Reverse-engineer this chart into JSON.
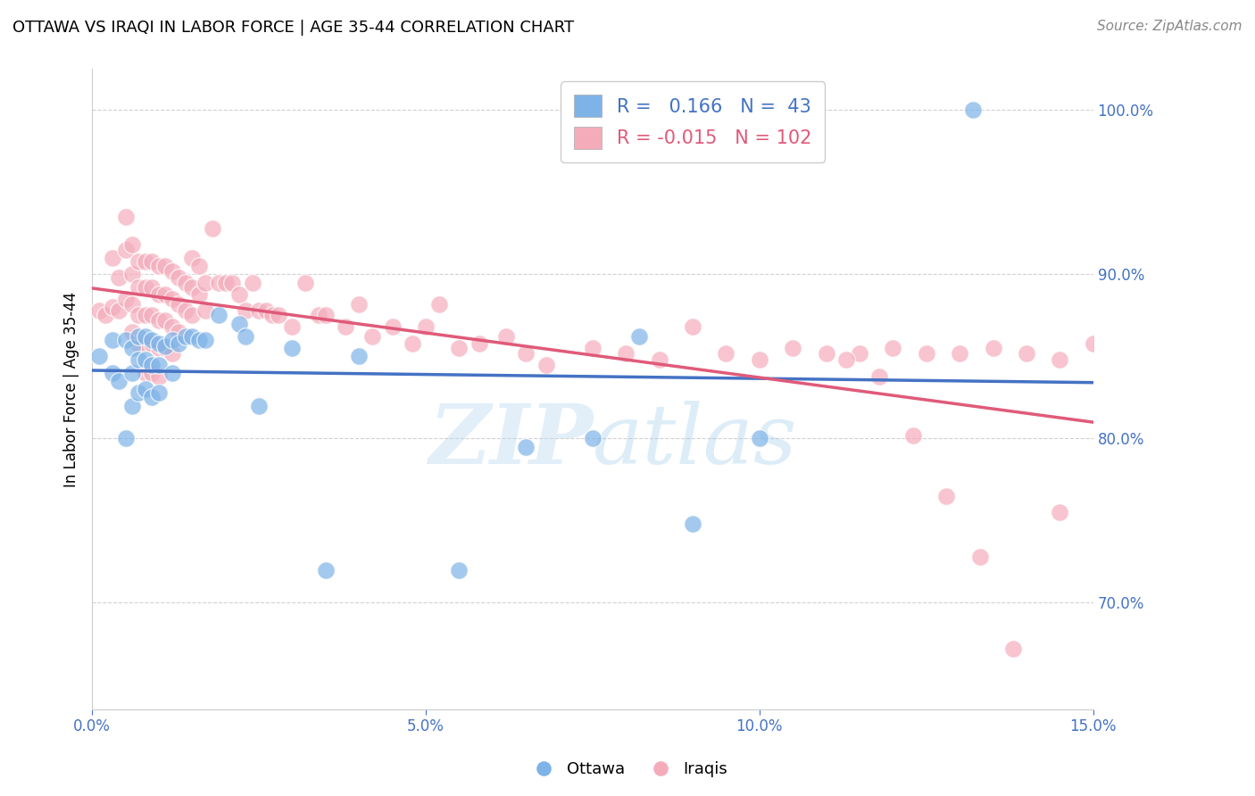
{
  "title": "OTTAWA VS IRAQI IN LABOR FORCE | AGE 35-44 CORRELATION CHART",
  "source": "Source: ZipAtlas.com",
  "ylabel": "In Labor Force | Age 35-44",
  "xlim": [
    0.0,
    0.15
  ],
  "ylim": [
    0.635,
    1.025
  ],
  "xtick_labels": [
    "0.0%",
    "5.0%",
    "10.0%",
    "15.0%"
  ],
  "xtick_vals": [
    0.0,
    0.05,
    0.1,
    0.15
  ],
  "ytick_labels": [
    "70.0%",
    "80.0%",
    "90.0%",
    "100.0%"
  ],
  "ytick_vals": [
    0.7,
    0.8,
    0.9,
    1.0
  ],
  "ottawa_color": "#7EB3E8",
  "iraqi_color": "#F4ACBB",
  "trend_ottawa_color": "#4472C4",
  "trend_iraqi_color": "#E05A7A",
  "R_ottawa": 0.166,
  "N_ottawa": 43,
  "R_iraqi": -0.015,
  "N_iraqi": 102,
  "background_color": "#FFFFFF",
  "grid_color": "#CCCCCC",
  "ottawa_points_x": [
    0.001,
    0.003,
    0.003,
    0.004,
    0.005,
    0.005,
    0.006,
    0.006,
    0.006,
    0.007,
    0.007,
    0.007,
    0.008,
    0.008,
    0.008,
    0.009,
    0.009,
    0.009,
    0.01,
    0.01,
    0.01,
    0.011,
    0.012,
    0.012,
    0.013,
    0.014,
    0.015,
    0.016,
    0.017,
    0.019,
    0.022,
    0.023,
    0.025,
    0.03,
    0.035,
    0.04,
    0.055,
    0.065,
    0.075,
    0.082,
    0.09,
    0.1,
    0.132
  ],
  "ottawa_points_y": [
    0.85,
    0.86,
    0.84,
    0.835,
    0.8,
    0.86,
    0.855,
    0.84,
    0.82,
    0.862,
    0.848,
    0.828,
    0.862,
    0.848,
    0.83,
    0.86,
    0.845,
    0.825,
    0.858,
    0.845,
    0.828,
    0.856,
    0.86,
    0.84,
    0.858,
    0.862,
    0.862,
    0.86,
    0.86,
    0.875,
    0.87,
    0.862,
    0.82,
    0.855,
    0.72,
    0.85,
    0.72,
    0.795,
    0.8,
    0.862,
    0.748,
    0.8,
    1.0
  ],
  "iraqi_points_x": [
    0.001,
    0.002,
    0.003,
    0.003,
    0.004,
    0.004,
    0.005,
    0.005,
    0.005,
    0.006,
    0.006,
    0.006,
    0.006,
    0.007,
    0.007,
    0.007,
    0.007,
    0.008,
    0.008,
    0.008,
    0.008,
    0.008,
    0.009,
    0.009,
    0.009,
    0.009,
    0.009,
    0.01,
    0.01,
    0.01,
    0.01,
    0.01,
    0.011,
    0.011,
    0.011,
    0.011,
    0.012,
    0.012,
    0.012,
    0.012,
    0.013,
    0.013,
    0.013,
    0.014,
    0.014,
    0.015,
    0.015,
    0.015,
    0.016,
    0.016,
    0.017,
    0.017,
    0.018,
    0.019,
    0.02,
    0.021,
    0.022,
    0.023,
    0.024,
    0.025,
    0.026,
    0.027,
    0.028,
    0.03,
    0.032,
    0.034,
    0.035,
    0.038,
    0.04,
    0.042,
    0.045,
    0.048,
    0.05,
    0.052,
    0.055,
    0.058,
    0.062,
    0.065,
    0.068,
    0.075,
    0.08,
    0.085,
    0.09,
    0.095,
    0.1,
    0.105,
    0.11,
    0.115,
    0.12,
    0.125,
    0.13,
    0.135,
    0.14,
    0.145,
    0.15,
    0.145,
    0.138,
    0.133,
    0.128,
    0.123,
    0.118,
    0.113
  ],
  "iraqi_points_y": [
    0.878,
    0.875,
    0.91,
    0.88,
    0.898,
    0.878,
    0.935,
    0.915,
    0.885,
    0.918,
    0.9,
    0.882,
    0.865,
    0.908,
    0.892,
    0.875,
    0.858,
    0.908,
    0.892,
    0.875,
    0.858,
    0.84,
    0.908,
    0.892,
    0.875,
    0.858,
    0.84,
    0.905,
    0.888,
    0.872,
    0.855,
    0.838,
    0.905,
    0.888,
    0.872,
    0.855,
    0.902,
    0.885,
    0.868,
    0.852,
    0.898,
    0.882,
    0.865,
    0.895,
    0.878,
    0.91,
    0.892,
    0.875,
    0.905,
    0.888,
    0.895,
    0.878,
    0.928,
    0.895,
    0.895,
    0.895,
    0.888,
    0.878,
    0.895,
    0.878,
    0.878,
    0.875,
    0.875,
    0.868,
    0.895,
    0.875,
    0.875,
    0.868,
    0.882,
    0.862,
    0.868,
    0.858,
    0.868,
    0.882,
    0.855,
    0.858,
    0.862,
    0.852,
    0.845,
    0.855,
    0.852,
    0.848,
    0.868,
    0.852,
    0.848,
    0.855,
    0.852,
    0.852,
    0.855,
    0.852,
    0.852,
    0.855,
    0.852,
    0.848,
    0.858,
    0.755,
    0.672,
    0.728,
    0.765,
    0.802,
    0.838,
    0.848
  ]
}
